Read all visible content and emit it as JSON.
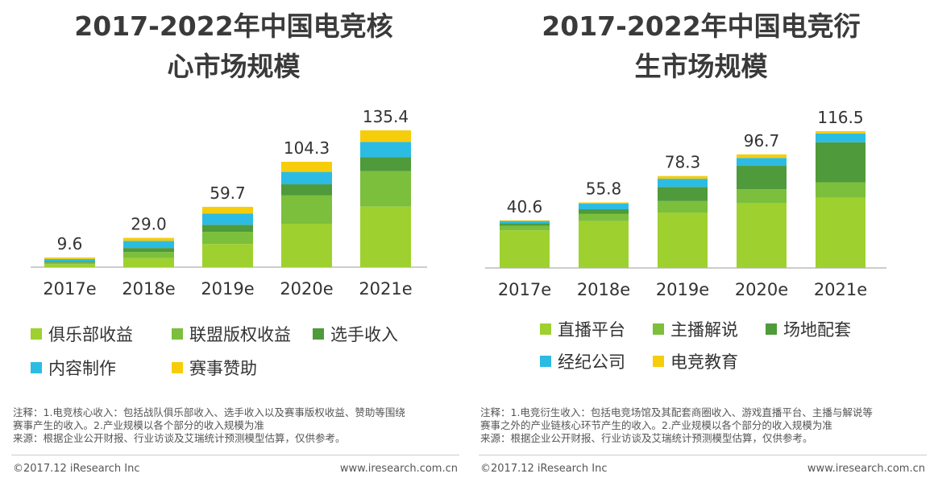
{
  "colors": {
    "s1": "#9ed12f",
    "s2": "#7bbf3c",
    "s3": "#4f9a3a",
    "s4": "#2cbce3",
    "s5": "#f6cd0b",
    "title": "#3a3a3a",
    "axis": "#bbbbbb"
  },
  "chart_data": [
    {
      "type": "bar",
      "stacked": true,
      "title": "2017-2022年中国电竞核心市场规模",
      "title_lines": [
        "2017-2022年中国电竞核",
        "心市场规模"
      ],
      "categories": [
        "2017e",
        "2018e",
        "2019e",
        "2020e",
        "2021e"
      ],
      "totals": [
        9.6,
        29.0,
        59.7,
        104.3,
        135.4
      ],
      "total_labels": [
        "9.6",
        "29.0",
        "59.7",
        "104.3",
        "135.4"
      ],
      "ylim": [
        0,
        135.4
      ],
      "series": [
        {
          "name": "俱乐部收益",
          "color": "#9ed12f",
          "values": [
            3.0,
            9.0,
            23.0,
            43.0,
            60.0
          ]
        },
        {
          "name": "联盟版权收益",
          "color": "#7bbf3c",
          "values": [
            1.5,
            6.0,
            12.0,
            28.0,
            35.0
          ]
        },
        {
          "name": "选手收入",
          "color": "#4f9a3a",
          "values": [
            1.0,
            4.0,
            7.0,
            11.0,
            14.0
          ]
        },
        {
          "name": "内容制作",
          "color": "#2cbce3",
          "values": [
            2.6,
            7.0,
            11.0,
            12.3,
            15.0
          ]
        },
        {
          "name": "赛事赞助",
          "color": "#f6cd0b",
          "values": [
            1.5,
            3.0,
            6.7,
            10.0,
            11.4
          ]
        }
      ],
      "notes": [
        "注释：1.电竞核心收入：包括战队俱乐部收入、选手收入以及赛事版权收益、赞助等围绕",
        "赛事产生的收入。2.产业规模以各个部分的收入规模为准",
        "来源：根据企业公开财报、行业访谈及艾瑞统计预测模型估算，仅供参考。"
      ],
      "copyright": "©2017.12 iResearch Inc",
      "website": "www.iresearch.com.cn"
    },
    {
      "type": "bar",
      "stacked": true,
      "title": "2017-2022年中国电竞衍生市场规模",
      "title_lines": [
        "2017-2022年中国电竞衍",
        "生市场规模"
      ],
      "categories": [
        "2017e",
        "2018e",
        "2019e",
        "2020e",
        "2021e"
      ],
      "totals": [
        40.6,
        55.8,
        78.3,
        96.7,
        116.5
      ],
      "total_labels": [
        "40.6",
        "55.8",
        "78.3",
        "96.7",
        "116.5"
      ],
      "ylim": [
        0,
        116.5
      ],
      "series": [
        {
          "name": "直播平台",
          "color": "#9ed12f",
          "values": [
            32.0,
            40.0,
            47.0,
            55.0,
            60.0
          ]
        },
        {
          "name": "主播解说",
          "color": "#7bbf3c",
          "values": [
            4.0,
            6.0,
            10.0,
            12.0,
            13.0
          ]
        },
        {
          "name": "场地配套",
          "color": "#4f9a3a",
          "values": [
            2.0,
            4.0,
            12.0,
            20.0,
            34.0
          ]
        },
        {
          "name": "经纪公司",
          "color": "#2cbce3",
          "values": [
            2.0,
            4.8,
            7.0,
            6.7,
            7.5
          ]
        },
        {
          "name": "电竞教育",
          "color": "#f6cd0b",
          "values": [
            0.6,
            1.0,
            2.3,
            3.0,
            2.0
          ]
        }
      ],
      "notes": [
        "注释：1.电竞衍生收入：包括电竞场馆及其配套商圈收入、游戏直播平台、主播与解说等",
        "赛事之外的产业链核心环节产生的收入。2.产业规模以各个部分的收入规模为准",
        "来源：根据企业公开财报、行业访谈及艾瑞统计预测模型估算，仅供参考。"
      ],
      "copyright": "©2017.12 iResearch Inc",
      "website": "www.iresearch.com.cn"
    }
  ]
}
